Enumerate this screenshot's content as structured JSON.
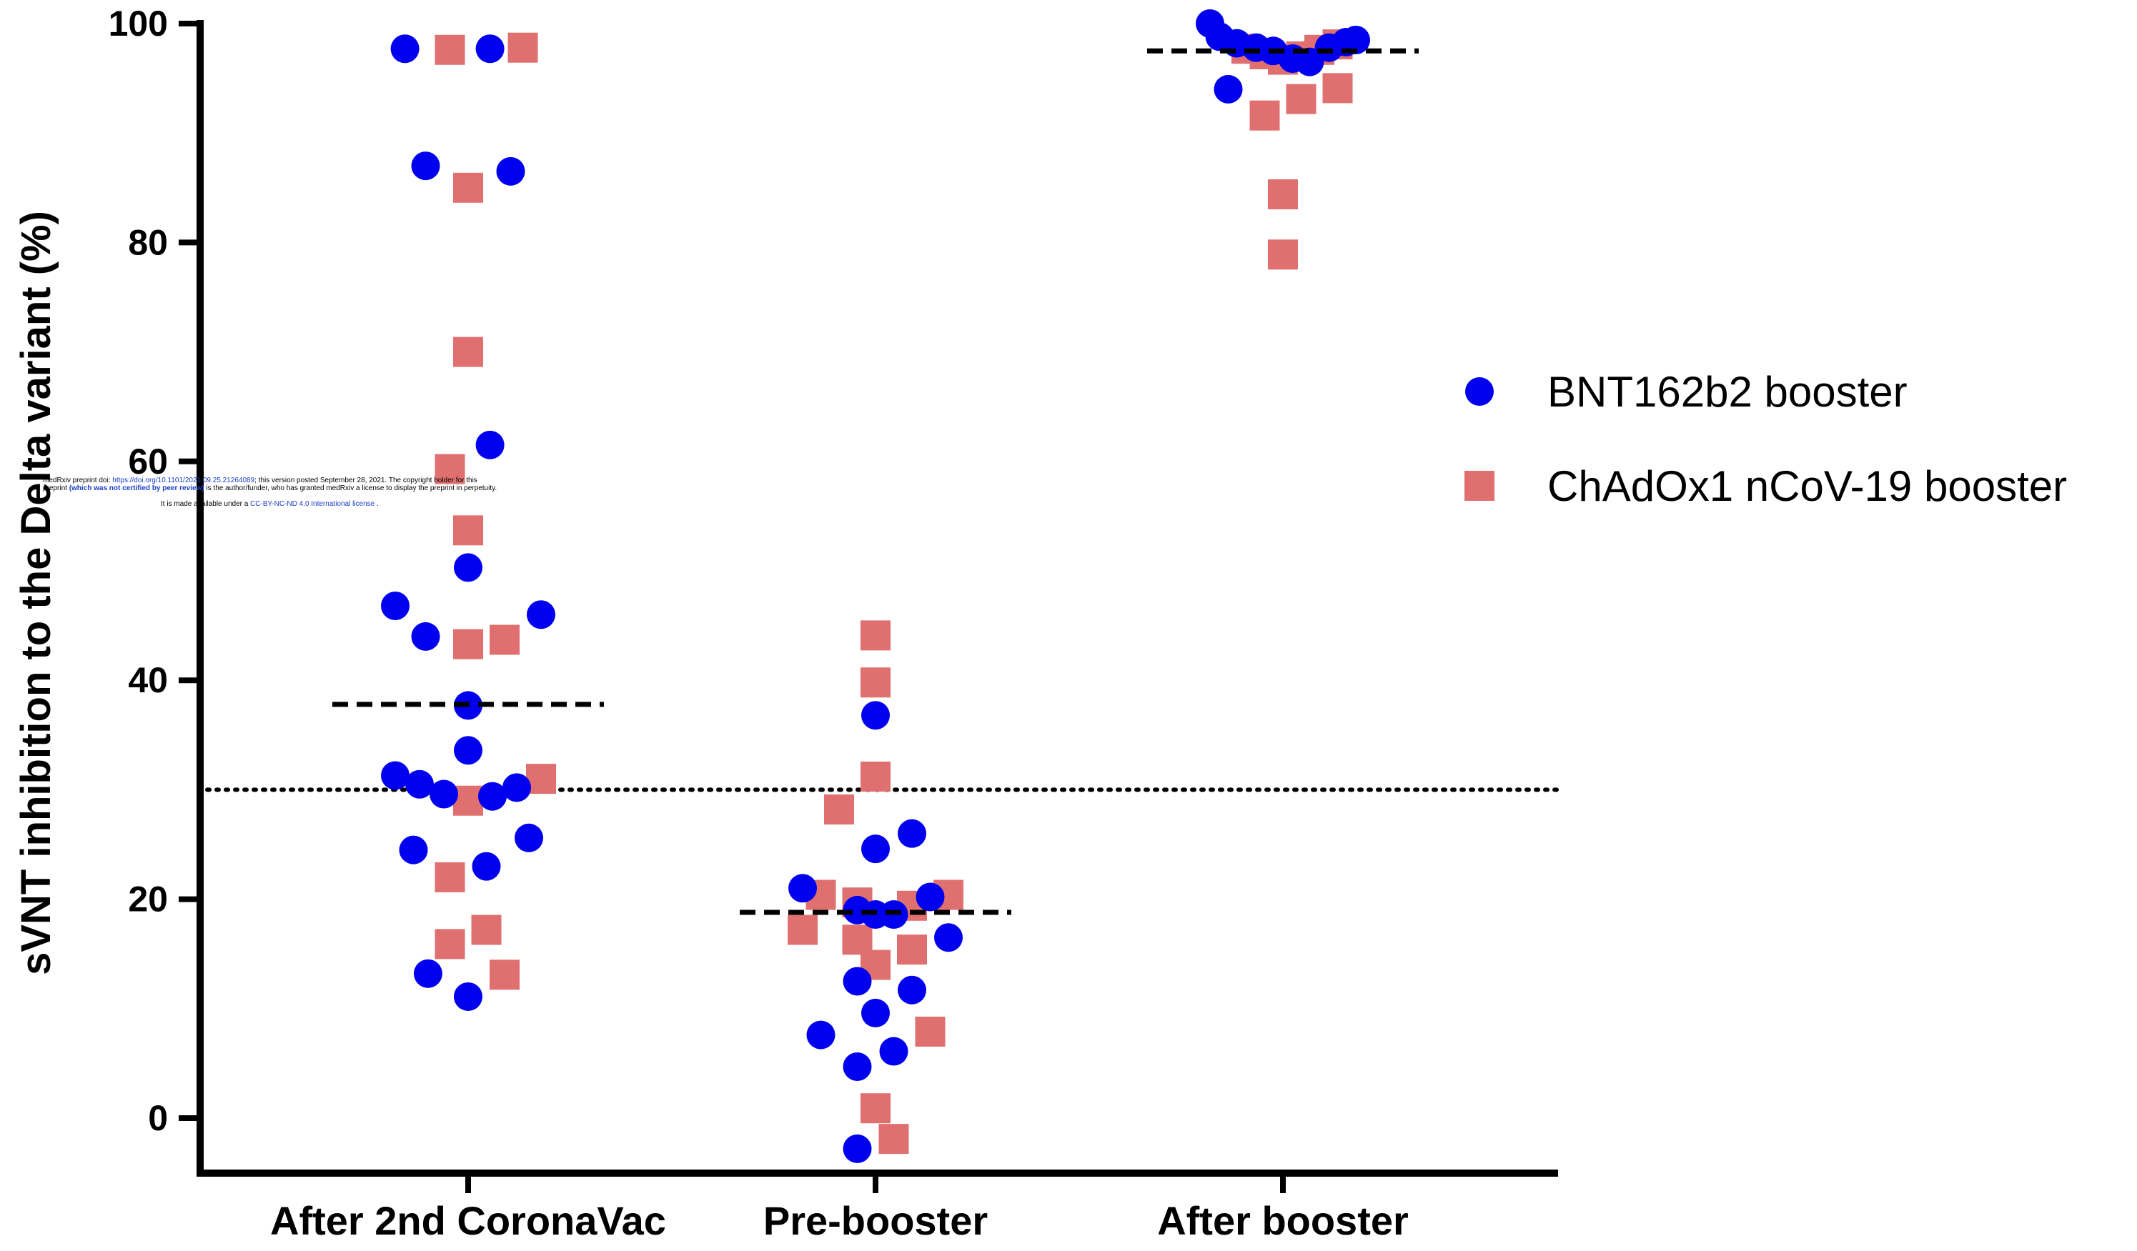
{
  "chart_data": {
    "type": "scatter",
    "ylabel": "sVNT inhibition to the Delta variant (%)",
    "xlabel": "",
    "ylim": [
      -5,
      100
    ],
    "yticks": [
      0,
      20,
      40,
      60,
      80,
      100
    ],
    "categories": [
      "After 2nd CoronaVac",
      "Pre-booster",
      "After booster"
    ],
    "reference_line": {
      "y": 30,
      "style": "dotted"
    },
    "legend": {
      "placement": "right"
    },
    "series": [
      {
        "name": "BNT162b2 booster",
        "color": "#0000ee",
        "marker": "circle",
        "medians": [
          37.8,
          18.8,
          97.5
        ],
        "points": [
          [
            [
              -0.52,
              97.7
            ],
            [
              0.18,
              97.7
            ],
            [
              -0.35,
              87
            ],
            [
              0.35,
              86.5
            ],
            [
              0.18,
              61.5
            ],
            [
              0,
              50.3
            ],
            [
              -0.6,
              46.8
            ],
            [
              0.6,
              46
            ],
            [
              -0.35,
              44
            ],
            [
              0,
              37.7
            ],
            [
              0,
              33.6
            ],
            [
              -0.6,
              31.3
            ],
            [
              -0.4,
              30.5
            ],
            [
              -0.2,
              29.6
            ],
            [
              0.2,
              29.4
            ],
            [
              0.4,
              30.2
            ],
            [
              -0.45,
              24.5
            ],
            [
              0.5,
              25.6
            ],
            [
              0.15,
              23
            ],
            [
              -0.33,
              13.2
            ],
            [
              0,
              11.1
            ]
          ],
          [
            [
              -0.6,
              21
            ],
            [
              0,
              36.8
            ],
            [
              0,
              24.6
            ],
            [
              0.3,
              26
            ],
            [
              -0.15,
              19
            ],
            [
              0,
              18.6
            ],
            [
              0.15,
              18.6
            ],
            [
              0.45,
              20.2
            ],
            [
              0.6,
              16.5
            ],
            [
              -0.15,
              12.5
            ],
            [
              0.3,
              11.7
            ],
            [
              0,
              9.6
            ],
            [
              -0.45,
              7.6
            ],
            [
              -0.15,
              4.7
            ],
            [
              0.15,
              6.1
            ],
            [
              -0.15,
              -2.8
            ]
          ],
          [
            [
              -0.6,
              100
            ],
            [
              -0.52,
              98.8
            ],
            [
              -0.38,
              98.2
            ],
            [
              -0.22,
              97.8
            ],
            [
              -0.08,
              97.5
            ],
            [
              0.08,
              96.8
            ],
            [
              0.22,
              96.5
            ],
            [
              0.38,
              97.8
            ],
            [
              0.52,
              98.3
            ],
            [
              0.6,
              98.5
            ],
            [
              -0.45,
              94
            ]
          ]
        ]
      },
      {
        "name": "ChAdOx1 nCoV-19 booster",
        "color": "#e07070",
        "marker": "square",
        "medians": [
          null,
          null,
          null
        ],
        "points": [
          [
            [
              -0.15,
              97.6
            ],
            [
              0.45,
              97.8
            ],
            [
              0,
              85
            ],
            [
              0,
              70
            ],
            [
              -0.15,
              59.3
            ],
            [
              0,
              53.7
            ],
            [
              0,
              43.3
            ],
            [
              0.3,
              43.7
            ],
            [
              0,
              29
            ],
            [
              0.6,
              31
            ],
            [
              -0.15,
              22
            ],
            [
              -0.15,
              15.9
            ],
            [
              0.15,
              17.2
            ],
            [
              0.3,
              13.1
            ]
          ],
          [
            [
              0,
              44.1
            ],
            [
              0,
              39.8
            ],
            [
              0,
              31.2
            ],
            [
              -0.3,
              28.2
            ],
            [
              -0.45,
              20.4
            ],
            [
              -0.15,
              19.7
            ],
            [
              -0.6,
              17.2
            ],
            [
              -0.15,
              16.3
            ],
            [
              0,
              14
            ],
            [
              0.3,
              19.4
            ],
            [
              0.3,
              15.4
            ],
            [
              0.6,
              20.4
            ],
            [
              0.45,
              7.9
            ],
            [
              0,
              0.9
            ],
            [
              0.15,
              -1.9
            ]
          ],
          [
            [
              -0.3,
              97.7
            ],
            [
              -0.15,
              97.2
            ],
            [
              0,
              96.7
            ],
            [
              0.15,
              97
            ],
            [
              0.3,
              97.6
            ],
            [
              0.45,
              98.1
            ],
            [
              -0.15,
              91.6
            ],
            [
              0.15,
              93.1
            ],
            [
              0.45,
              94.1
            ],
            [
              0,
              84.4
            ],
            [
              0,
              78.9
            ]
          ]
        ]
      }
    ]
  },
  "watermark": {
    "line1_pre": "medRxiv preprint doi: ",
    "line1_link": "https://doi.org/10.1101/2021.09.25.21264089",
    "line1_post": "; this version posted September 28, 2021. The copyright holder for this",
    "line2_pre": "preprint ",
    "line2_bold": "(which was not certified by peer review)",
    "line2_post": " is the author/funder, who has granted medRxiv a license to display the preprint in perpetuity.",
    "line3_pre": "It is made available under a ",
    "line3_link": "CC-BY-NC-ND 4.0 International license",
    "line3_post": " ."
  }
}
